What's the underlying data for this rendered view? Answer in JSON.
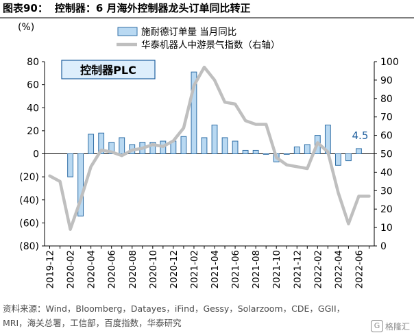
{
  "figure": {
    "label": "图表90：",
    "heading": "控制器：6 月海外控制器龙头订单同比转正"
  },
  "source_note": "资料来源：Wind，Bloomberg，Datayes，iFind，Gessy，Solarzoom，CDE，GGII，MRI，海关总署，工信部，百度指数，华泰研究",
  "watermark": {
    "logo": "G",
    "text": "格隆汇"
  },
  "chart_data": {
    "type": "bar",
    "panel_label": "控制器PLC",
    "left_axis_unit": "(%)",
    "left_ylim": [
      -80,
      80
    ],
    "left_ticks": [
      80,
      60,
      40,
      20,
      0,
      -20,
      -40,
      -60,
      -80
    ],
    "left_tick_labels": [
      "80",
      "60",
      "40",
      "20",
      "0",
      "(20)",
      "(40)",
      "(60)",
      "(80)"
    ],
    "right_ylim": [
      0,
      100
    ],
    "right_ticks": [
      100,
      90,
      80,
      70,
      60,
      50,
      40,
      30,
      20,
      10,
      0
    ],
    "x_tick_labels": [
      "2019-12",
      "2020-02",
      "2020-04",
      "2020-06",
      "2020-08",
      "2020-10",
      "2020-12",
      "2021-02",
      "2021-04",
      "2021-06",
      "2021-08",
      "2021-10",
      "2021-12",
      "2022-02",
      "2022-04",
      "2022-06"
    ],
    "categories": [
      "2019-12",
      "2020-01",
      "2020-02",
      "2020-03",
      "2020-04",
      "2020-05",
      "2020-06",
      "2020-07",
      "2020-08",
      "2020-09",
      "2020-10",
      "2020-11",
      "2020-12",
      "2021-01",
      "2021-02",
      "2021-03",
      "2021-04",
      "2021-05",
      "2021-06",
      "2021-07",
      "2021-08",
      "2021-09",
      "2021-10",
      "2021-11",
      "2021-12",
      "2022-01",
      "2022-02",
      "2022-03",
      "2022-04",
      "2022-05",
      "2022-06",
      "2022-07"
    ],
    "series": [
      {
        "name": "施耐德订单量 当月同比",
        "kind": "bar",
        "axis": "left",
        "color": "#b9d9f2",
        "edge": "#2f6ea6",
        "values": [
          null,
          null,
          -20,
          -54,
          17,
          18,
          10,
          14,
          8,
          10,
          10,
          11,
          11,
          15,
          71,
          14,
          25,
          14,
          11,
          3,
          3,
          0,
          -7,
          0,
          6,
          8,
          16,
          25,
          -10,
          -6,
          4.5,
          null
        ]
      },
      {
        "name": "华泰机器人中游景气指数（右轴）",
        "kind": "line",
        "axis": "right",
        "color": "#bfbfbf",
        "values": [
          38,
          35,
          9,
          25,
          43,
          52,
          51,
          49,
          52,
          53,
          55,
          54,
          57,
          64,
          87,
          97,
          90,
          78,
          77,
          68,
          66,
          66,
          48,
          44,
          43,
          42,
          56,
          51,
          29,
          12,
          27,
          27
        ]
      }
    ],
    "annotations": [
      {
        "category": "2022-06",
        "text": "4.5",
        "color": "#1f5f9e"
      }
    ]
  }
}
